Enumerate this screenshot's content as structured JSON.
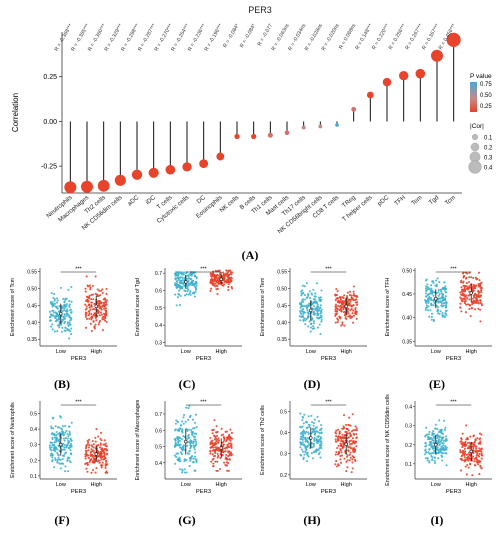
{
  "figure_a": {
    "panel_label": "(A)",
    "legend": {
      "pvalue_title": "P value",
      "pvalue_ticks": [
        "0.75",
        "0.50",
        "0.25"
      ],
      "cor_title": "|Cor|",
      "cor_ticks": [
        "0.1",
        "0.2",
        "0.3",
        "0.4"
      ]
    }
  },
  "chart_data": [
    {
      "panel": "A",
      "type": "lollipop",
      "title": "PER3",
      "xlabel": "",
      "ylabel": "Correlation",
      "ylim": [
        -0.4,
        0.5
      ],
      "yticks": [
        -0.25,
        0.0,
        0.25
      ],
      "yticklabels": [
        "-0.25",
        "0.00",
        "0.25"
      ],
      "grid": false,
      "categories": [
        "Neutrophils",
        "Macrophages",
        "Th2 cells",
        "NK CD56dim cells",
        "aDC",
        "iDC",
        "T cells",
        "Cytotoxic cells",
        "DC",
        "Eosinophils",
        "NK cells",
        "B cells",
        "Th1 cells",
        "Mast cells",
        "Th17 cells",
        "NK CD56bright cells",
        "CD8 T cells",
        "TReg",
        "T helper cells",
        "pDC",
        "TFH",
        "Tem",
        "Tgd",
        "Tcm"
      ],
      "values": [
        -0.368,
        -0.365,
        -0.36,
        -0.329,
        -0.298,
        -0.287,
        -0.27,
        -0.254,
        -0.236,
        -0.196,
        -0.084,
        -0.084,
        -0.077,
        -0.063,
        -0.034,
        -0.028,
        -0.02,
        0.068,
        0.148,
        0.22,
        0.256,
        0.267,
        0.367,
        0.456
      ],
      "pvalues": [
        0.001,
        0.001,
        0.001,
        0.001,
        0.001,
        0.001,
        0.001,
        0.001,
        0.001,
        0.001,
        0.05,
        0.05,
        0.08,
        0.15,
        0.4,
        0.5,
        0.9,
        0.1,
        0.001,
        0.001,
        0.001,
        0.001,
        0.001,
        0.001
      ],
      "annotations": [
        "R = -0.368***",
        "R = -0.365***",
        "R = -0.360***",
        "R = -0.329***",
        "R = -0.298***",
        "R = -0.287***",
        "R = -0.270***",
        "R = -0.254***",
        "R = -0.236***",
        "R = -0.196***",
        "R = -0.084*",
        "R = -0.084*",
        "R = -0.077",
        "R = -0.063ns",
        "R = -0.034ns",
        "R = -0.028ns",
        "R = -0.020ns",
        "R = 0.068ns",
        "R = 0.148***",
        "R = 0.220***",
        "R = 0.256***",
        "R = 0.267***",
        "R = 0.367***",
        "R = 0.456***"
      ],
      "legend": "right",
      "colors": {
        "low_p": "#e8432b",
        "mid_p": "#c48a8a",
        "high_p": "#4aa8d8"
      }
    },
    {
      "panel": "B",
      "panel_label": "(B)",
      "type": "scatter",
      "xlabel": "PER3",
      "ylabel": "Enrichment score of Tcm",
      "categories": [
        "Low",
        "High"
      ],
      "significance": "***",
      "ylim": [
        0.33,
        0.56
      ],
      "yticks": [
        0.35,
        0.4,
        0.45,
        0.5,
        0.55
      ],
      "yticklabels": [
        "0.35",
        "0.40",
        "0.45",
        "0.50",
        "0.55"
      ],
      "series": [
        {
          "name": "Low",
          "color": "#3fb3d0",
          "mean": 0.425,
          "sd": 0.03,
          "min": 0.345,
          "max": 0.52
        },
        {
          "name": "High",
          "color": "#e8432b",
          "mean": 0.447,
          "sd": 0.03,
          "min": 0.37,
          "max": 0.535
        }
      ]
    },
    {
      "panel": "C",
      "panel_label": "(C)",
      "type": "scatter",
      "xlabel": "PER3",
      "ylabel": "Enrichment score of Tgd",
      "categories": [
        "Low",
        "High"
      ],
      "significance": "***",
      "ylim": [
        0.28,
        0.73
      ],
      "yticks": [
        0.3,
        0.4,
        0.5,
        0.6,
        0.7
      ],
      "yticklabels": [
        "0.3",
        "0.4",
        "0.5",
        "0.6",
        "0.7"
      ],
      "series": [
        {
          "name": "Low",
          "color": "#3fb3d0",
          "mean": 0.65,
          "sd": 0.04,
          "min": 0.33,
          "max": 0.705
        },
        {
          "name": "High",
          "color": "#e8432b",
          "mean": 0.665,
          "sd": 0.03,
          "min": 0.3,
          "max": 0.715
        }
      ]
    },
    {
      "panel": "D",
      "panel_label": "(D)",
      "type": "scatter",
      "xlabel": "PER3",
      "ylabel": "Enrichment score of Tem",
      "categories": [
        "Low",
        "High"
      ],
      "significance": "***",
      "ylim": [
        0.33,
        0.56
      ],
      "yticks": [
        0.35,
        0.4,
        0.45,
        0.5,
        0.55
      ],
      "yticklabels": [
        "0.35",
        "0.40",
        "0.45",
        "0.50",
        "0.55"
      ],
      "series": [
        {
          "name": "Low",
          "color": "#3fb3d0",
          "mean": 0.435,
          "sd": 0.03,
          "min": 0.355,
          "max": 0.52
        },
        {
          "name": "High",
          "color": "#e8432b",
          "mean": 0.447,
          "sd": 0.025,
          "min": 0.39,
          "max": 0.51
        }
      ]
    },
    {
      "panel": "E",
      "panel_label": "(E)",
      "type": "scatter",
      "xlabel": "PER3",
      "ylabel": "Enrichment score of TFH",
      "categories": [
        "Low",
        "High"
      ],
      "significance": "***",
      "ylim": [
        0.34,
        0.505
      ],
      "yticks": [
        0.35,
        0.4,
        0.45,
        0.5
      ],
      "yticklabels": [
        "0.35",
        "0.40",
        "0.45",
        "0.50"
      ],
      "series": [
        {
          "name": "Low",
          "color": "#3fb3d0",
          "mean": 0.44,
          "sd": 0.02,
          "min": 0.355,
          "max": 0.49
        },
        {
          "name": "High",
          "color": "#e8432b",
          "mean": 0.452,
          "sd": 0.02,
          "min": 0.385,
          "max": 0.495
        }
      ]
    },
    {
      "panel": "F",
      "panel_label": "(F)",
      "type": "scatter",
      "xlabel": "PER3",
      "ylabel": "Enrichment score of Neutrophils",
      "categories": [
        "Low",
        "High"
      ],
      "significance": "***",
      "ylim": [
        0.08,
        0.58
      ],
      "yticks": [
        0.1,
        0.2,
        0.3,
        0.4,
        0.5
      ],
      "yticklabels": [
        "0.1",
        "0.2",
        "0.3",
        "0.4",
        "0.5"
      ],
      "series": [
        {
          "name": "Low",
          "color": "#3fb3d0",
          "mean": 0.3,
          "sd": 0.07,
          "min": 0.13,
          "max": 0.53
        },
        {
          "name": "High",
          "color": "#e8432b",
          "mean": 0.24,
          "sd": 0.05,
          "min": 0.12,
          "max": 0.4
        }
      ]
    },
    {
      "panel": "G",
      "panel_label": "(G)",
      "type": "scatter",
      "xlabel": "PER3",
      "ylabel": "Enrichment score of Macrophages",
      "categories": [
        "Low",
        "High"
      ],
      "significance": "***",
      "ylim": [
        0.3,
        0.78
      ],
      "yticks": [
        0.4,
        0.5,
        0.6,
        0.7
      ],
      "yticklabels": [
        "0.4",
        "0.5",
        "0.6",
        "0.7"
      ],
      "series": [
        {
          "name": "Low",
          "color": "#3fb3d0",
          "mean": 0.53,
          "sd": 0.08,
          "min": 0.34,
          "max": 0.75
        },
        {
          "name": "High",
          "color": "#e8432b",
          "mean": 0.49,
          "sd": 0.06,
          "min": 0.35,
          "max": 0.68
        }
      ]
    },
    {
      "panel": "H",
      "panel_label": "(H)",
      "type": "scatter",
      "xlabel": "PER3",
      "ylabel": "Enrichment score of Th2 cells",
      "categories": [
        "Low",
        "High"
      ],
      "significance": "***",
      "ylim": [
        0.18,
        0.55
      ],
      "yticks": [
        0.2,
        0.3,
        0.4,
        0.5
      ],
      "yticklabels": [
        "0.2",
        "0.3",
        "0.4",
        "0.5"
      ],
      "series": [
        {
          "name": "Low",
          "color": "#3fb3d0",
          "mean": 0.375,
          "sd": 0.05,
          "min": 0.24,
          "max": 0.53
        },
        {
          "name": "High",
          "color": "#e8432b",
          "mean": 0.345,
          "sd": 0.05,
          "min": 0.2,
          "max": 0.5
        }
      ]
    },
    {
      "panel": "I",
      "panel_label": "(I)",
      "type": "scatter",
      "xlabel": "PER3",
      "ylabel": "Enrichment score of NK CD56dim cells",
      "categories": [
        "Low",
        "High"
      ],
      "significance": "***",
      "ylim": [
        0.02,
        0.43
      ],
      "yticks": [
        0.1,
        0.2,
        0.3,
        0.4
      ],
      "yticklabels": [
        "0.1",
        "0.2",
        "0.3",
        "0.4"
      ],
      "series": [
        {
          "name": "Low",
          "color": "#3fb3d0",
          "mean": 0.2,
          "sd": 0.05,
          "min": 0.07,
          "max": 0.4
        },
        {
          "name": "High",
          "color": "#e8432b",
          "mean": 0.165,
          "sd": 0.05,
          "min": 0.04,
          "max": 0.39
        }
      ]
    }
  ]
}
